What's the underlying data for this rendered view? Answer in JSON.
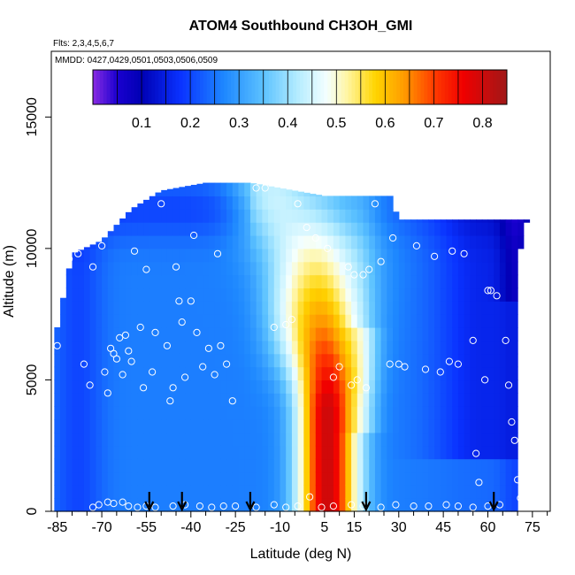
{
  "chart_data": {
    "type": "heatmap",
    "title": "ATOM4 Southbound CH3OH_GMI",
    "flights_note": "Flts: 2,3,4,5,6,7",
    "dates_note": "MMDD: 0427,0429,0501,0503,0506,0509",
    "xlabel": "Latitude (deg N)",
    "ylabel": "Altitude (m)",
    "xlim": [
      -87,
      81
    ],
    "ylim": [
      0,
      17500
    ],
    "x_ticks": [
      -85,
      -70,
      -55,
      -40,
      -25,
      -10,
      5,
      15,
      30,
      45,
      60,
      75
    ],
    "x_tick_labels": [
      "-85",
      "-70",
      "-55",
      "-40",
      "-25",
      "-10",
      "5",
      "15",
      "30",
      "45",
      "60",
      "75"
    ],
    "y_ticks": [
      0,
      5000,
      10000,
      15000
    ],
    "y_tick_labels": [
      "0",
      "5000",
      "10000",
      "15000"
    ],
    "colorbar": {
      "range": [
        0,
        0.85
      ],
      "ticks": [
        0.1,
        0.2,
        0.3,
        0.4,
        0.5,
        0.6,
        0.7,
        0.8
      ],
      "tick_labels": [
        "0.1",
        "0.2",
        "0.3",
        "0.4",
        "0.5",
        "0.6",
        "0.7",
        "0.8"
      ],
      "stops": [
        {
          "v": 0.0,
          "c": "#8a2be2"
        },
        {
          "v": 0.05,
          "c": "#1a00d0"
        },
        {
          "v": 0.1,
          "c": "#0000b4"
        },
        {
          "v": 0.18,
          "c": "#0a32ff"
        },
        {
          "v": 0.27,
          "c": "#1e88ff"
        },
        {
          "v": 0.35,
          "c": "#5cc2ff"
        },
        {
          "v": 0.42,
          "c": "#b4ecff"
        },
        {
          "v": 0.48,
          "c": "#f4ffff"
        },
        {
          "v": 0.52,
          "c": "#fff6a8"
        },
        {
          "v": 0.58,
          "c": "#ffd400"
        },
        {
          "v": 0.64,
          "c": "#ff9a00"
        },
        {
          "v": 0.7,
          "c": "#ff3c00"
        },
        {
          "v": 0.76,
          "c": "#f00000"
        },
        {
          "v": 0.85,
          "c": "#a01818"
        }
      ]
    },
    "coverage": {
      "top_altitude": [
        {
          "lat": -85,
          "alt": 7000
        },
        {
          "lat": -80,
          "alt": 9800
        },
        {
          "lat": -70,
          "alt": 10300
        },
        {
          "lat": -60,
          "alt": 11500
        },
        {
          "lat": -50,
          "alt": 12200
        },
        {
          "lat": -35,
          "alt": 12500
        },
        {
          "lat": -20,
          "alt": 12500
        },
        {
          "lat": 5,
          "alt": 12000
        },
        {
          "lat": 27,
          "alt": 12000
        },
        {
          "lat": 30,
          "alt": 11100
        },
        {
          "lat": 73,
          "alt": 11100
        }
      ],
      "right_edge_latitude": [
        {
          "alt": 0,
          "lat": 70
        },
        {
          "alt": 6000,
          "lat": 71
        },
        {
          "alt": 9000,
          "lat": 69
        },
        {
          "alt": 11000,
          "lat": 73
        }
      ]
    },
    "field_features": {
      "background_value": 0.26,
      "tropical_plume": {
        "center_lat": 6,
        "max_value": 0.8
      },
      "polar_low": {
        "lat": 70,
        "value": 0.08
      }
    },
    "observations": [
      {
        "lat": -85,
        "alt": 6300
      },
      {
        "lat": -83,
        "alt": 9600
      },
      {
        "lat": -81,
        "alt": 9600
      },
      {
        "lat": -78,
        "alt": 9800
      },
      {
        "lat": -76,
        "alt": 5600
      },
      {
        "lat": -74,
        "alt": 4800
      },
      {
        "lat": -73,
        "alt": 9300
      },
      {
        "lat": -70,
        "alt": 10100
      },
      {
        "lat": -69,
        "alt": 5300
      },
      {
        "lat": -68,
        "alt": 4500
      },
      {
        "lat": -67,
        "alt": 6200
      },
      {
        "lat": -66,
        "alt": 6000
      },
      {
        "lat": -65,
        "alt": 5800
      },
      {
        "lat": -64,
        "alt": 6600
      },
      {
        "lat": -63,
        "alt": 5200
      },
      {
        "lat": -62,
        "alt": 6700
      },
      {
        "lat": -61,
        "alt": 6100
      },
      {
        "lat": -60,
        "alt": 5700
      },
      {
        "lat": -59,
        "alt": 9900
      },
      {
        "lat": -57,
        "alt": 7000
      },
      {
        "lat": -56,
        "alt": 4700
      },
      {
        "lat": -55,
        "alt": 9200
      },
      {
        "lat": -53,
        "alt": 5300
      },
      {
        "lat": -52,
        "alt": 6800
      },
      {
        "lat": -50,
        "alt": 11700
      },
      {
        "lat": -48,
        "alt": 6300
      },
      {
        "lat": -47,
        "alt": 4200
      },
      {
        "lat": -46,
        "alt": 4700
      },
      {
        "lat": -45,
        "alt": 9300
      },
      {
        "lat": -44,
        "alt": 8000
      },
      {
        "lat": -43,
        "alt": 7200
      },
      {
        "lat": -42,
        "alt": 5100
      },
      {
        "lat": -40,
        "alt": 8000
      },
      {
        "lat": -39,
        "alt": 10500
      },
      {
        "lat": -38,
        "alt": 6800
      },
      {
        "lat": -36,
        "alt": 5500
      },
      {
        "lat": -34,
        "alt": 6200
      },
      {
        "lat": -32,
        "alt": 5200
      },
      {
        "lat": -31,
        "alt": 9800
      },
      {
        "lat": -30,
        "alt": 6300
      },
      {
        "lat": -28,
        "alt": 5600
      },
      {
        "lat": -26,
        "alt": 4200
      },
      {
        "lat": -18,
        "alt": 12300
      },
      {
        "lat": -15,
        "alt": 12300
      },
      {
        "lat": -12,
        "alt": 7000
      },
      {
        "lat": -8,
        "alt": 7100
      },
      {
        "lat": -6,
        "alt": 7300
      },
      {
        "lat": -4,
        "alt": 11700
      },
      {
        "lat": -1,
        "alt": 10800
      },
      {
        "lat": 2,
        "alt": 10400
      },
      {
        "lat": 6,
        "alt": 10000
      },
      {
        "lat": 8,
        "alt": 5100
      },
      {
        "lat": 10,
        "alt": 5500
      },
      {
        "lat": 13,
        "alt": 9300
      },
      {
        "lat": 14,
        "alt": 4800
      },
      {
        "lat": 15,
        "alt": 9000
      },
      {
        "lat": 16,
        "alt": 5000
      },
      {
        "lat": 18,
        "alt": 9000
      },
      {
        "lat": 19,
        "alt": 4700
      },
      {
        "lat": 20,
        "alt": 9200
      },
      {
        "lat": 22,
        "alt": 11700
      },
      {
        "lat": 24,
        "alt": 9500
      },
      {
        "lat": 27,
        "alt": 5600
      },
      {
        "lat": 28,
        "alt": 10400
      },
      {
        "lat": 30,
        "alt": 5600
      },
      {
        "lat": 32,
        "alt": 5500
      },
      {
        "lat": 36,
        "alt": 10100
      },
      {
        "lat": 39,
        "alt": 5400
      },
      {
        "lat": 42,
        "alt": 9700
      },
      {
        "lat": 44,
        "alt": 5300
      },
      {
        "lat": 47,
        "alt": 5700
      },
      {
        "lat": 48,
        "alt": 9900
      },
      {
        "lat": 50,
        "alt": 5600
      },
      {
        "lat": 52,
        "alt": 9800
      },
      {
        "lat": 55,
        "alt": 6500
      },
      {
        "lat": 56,
        "alt": 2200
      },
      {
        "lat": 57,
        "alt": 1100
      },
      {
        "lat": 59,
        "alt": 5000
      },
      {
        "lat": 60,
        "alt": 8400
      },
      {
        "lat": 61,
        "alt": 8400
      },
      {
        "lat": 63,
        "alt": 8200
      },
      {
        "lat": 66,
        "alt": 6500
      },
      {
        "lat": 67,
        "alt": 4800
      },
      {
        "lat": 68,
        "alt": 3400
      },
      {
        "lat": 69,
        "alt": 2700
      },
      {
        "lat": 70,
        "alt": 1200
      },
      {
        "lat": 71,
        "alt": 500
      },
      {
        "lat": -73,
        "alt": 150
      },
      {
        "lat": -71,
        "alt": 250
      },
      {
        "lat": -68,
        "alt": 350
      },
      {
        "lat": -66,
        "alt": 300
      },
      {
        "lat": -63,
        "alt": 350
      },
      {
        "lat": -61,
        "alt": 200
      },
      {
        "lat": -58,
        "alt": 150
      },
      {
        "lat": -55,
        "alt": 200
      },
      {
        "lat": -52,
        "alt": 150
      },
      {
        "lat": -46,
        "alt": 200
      },
      {
        "lat": -42,
        "alt": 250
      },
      {
        "lat": -37,
        "alt": 200
      },
      {
        "lat": -33,
        "alt": 150
      },
      {
        "lat": -29,
        "alt": 200
      },
      {
        "lat": -25,
        "alt": 200
      },
      {
        "lat": -18,
        "alt": 150
      },
      {
        "lat": -12,
        "alt": 250
      },
      {
        "lat": -8,
        "alt": 150
      },
      {
        "lat": -4,
        "alt": 200
      },
      {
        "lat": 0,
        "alt": 550
      },
      {
        "lat": 4,
        "alt": 150
      },
      {
        "lat": 8,
        "alt": 200
      },
      {
        "lat": 14,
        "alt": 250
      },
      {
        "lat": 18,
        "alt": 200
      },
      {
        "lat": 24,
        "alt": 150
      },
      {
        "lat": 29,
        "alt": 250
      },
      {
        "lat": 35,
        "alt": 200
      },
      {
        "lat": 40,
        "alt": 200
      },
      {
        "lat": 46,
        "alt": 250
      },
      {
        "lat": 50,
        "alt": 200
      },
      {
        "lat": 55,
        "alt": 150
      },
      {
        "lat": 60,
        "alt": 200
      },
      {
        "lat": 64,
        "alt": 250
      }
    ],
    "markers": {
      "type": "down-arrow",
      "latitudes": [
        -54,
        -43,
        -20,
        19,
        62
      ]
    }
  }
}
